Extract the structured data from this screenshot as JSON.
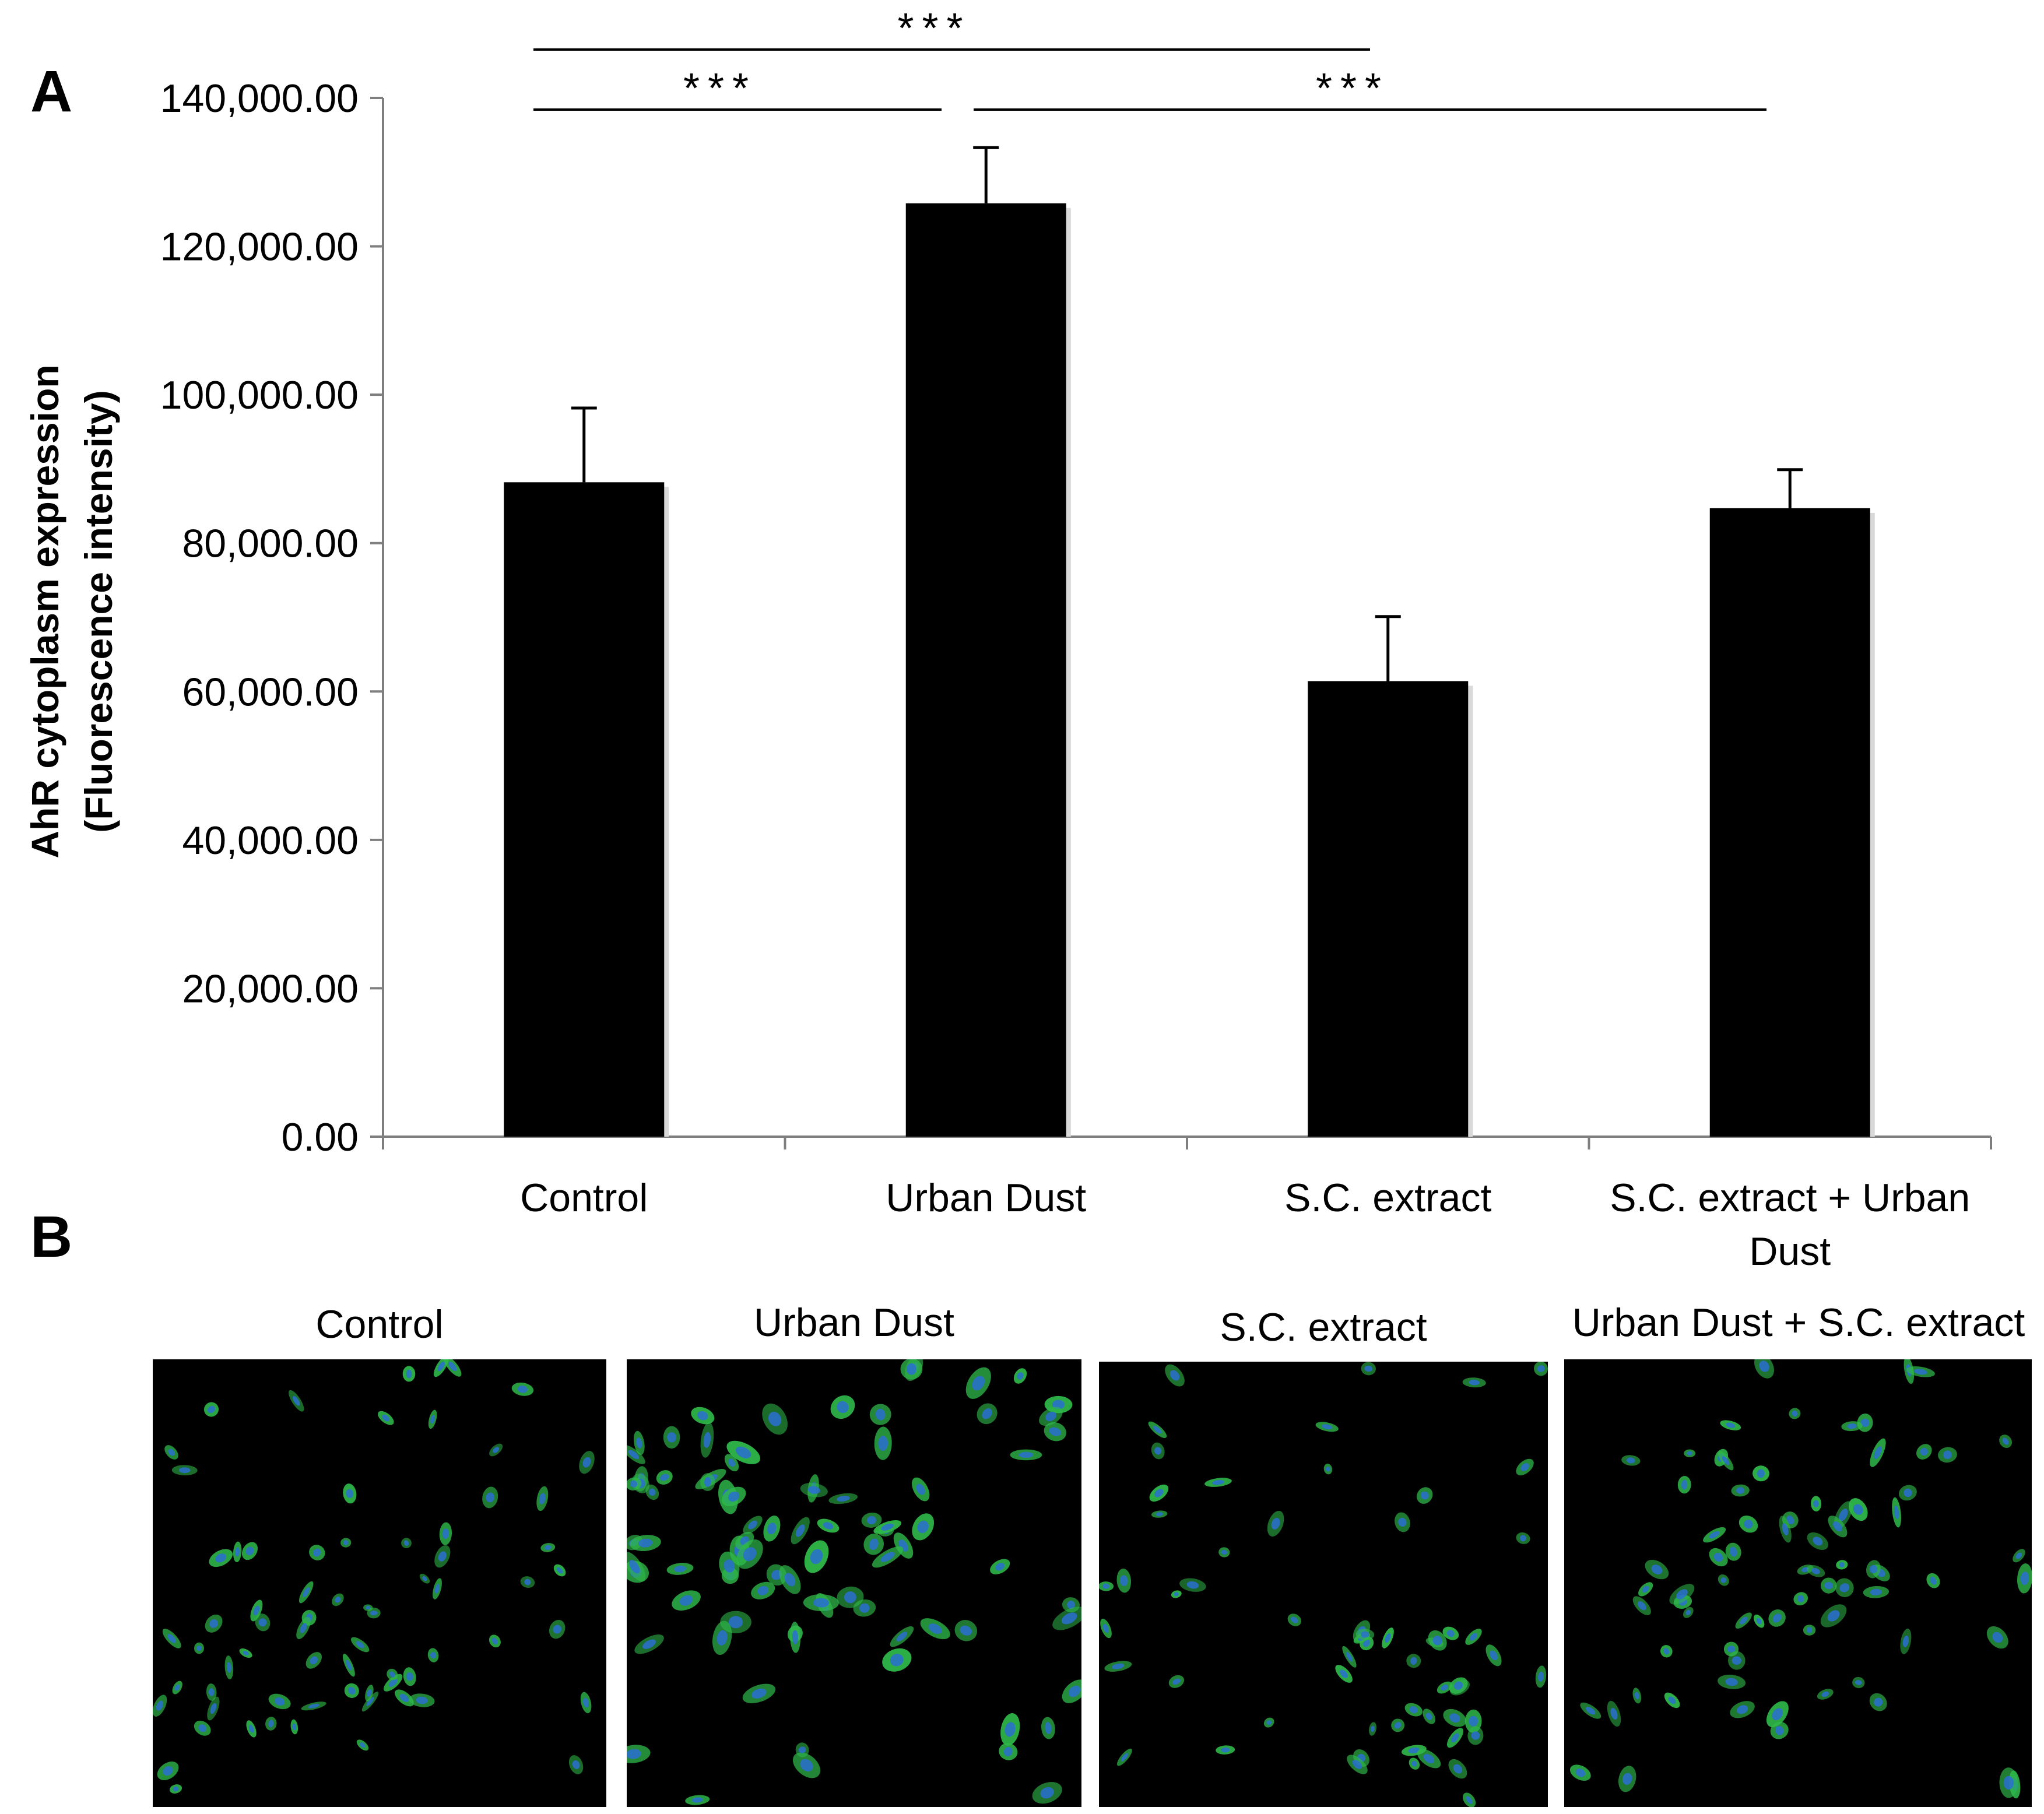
{
  "panel_a_label": "A",
  "panel_b_label": "B",
  "chart_data": {
    "type": "bar",
    "title": "",
    "ylabel": [
      "AhR cytoplasm expression",
      "(Fluorescence intensity)"
    ],
    "xlabel": "",
    "ylim": [
      0,
      140000
    ],
    "yticks": [
      0,
      20000,
      40000,
      60000,
      80000,
      100000,
      120000,
      140000
    ],
    "ytick_labels": [
      "0.00",
      "20,000.00",
      "40,000.00",
      "60,000.00",
      "80,000.00",
      "100,000.00",
      "120,000.00",
      "140,000.00"
    ],
    "categories": [
      [
        "Control"
      ],
      [
        "Urban Dust"
      ],
      [
        "S.C. extract"
      ],
      [
        "S.C. extract + Urban",
        "Dust"
      ]
    ],
    "values": [
      88200,
      125800,
      61400,
      84700
    ],
    "error_plus": [
      10000,
      7500,
      8700,
      5200
    ],
    "bar_color": "#000000",
    "grid": false,
    "legend": "none",
    "significance": [
      {
        "from": 0,
        "to": 1,
        "label": "***"
      },
      {
        "from": 1,
        "to": 3,
        "label": "***"
      },
      {
        "from": 0,
        "to": 2,
        "label": "***"
      }
    ]
  },
  "micrographs": [
    {
      "label": "Control"
    },
    {
      "label": "Urban Dust"
    },
    {
      "label": "S.C. extract"
    },
    {
      "label": "Urban Dust + S.C. extract"
    }
  ],
  "colors": {
    "cell_green": "#2fb84a",
    "nucleus_blue": "#2a6fd1",
    "background": "#000000"
  }
}
